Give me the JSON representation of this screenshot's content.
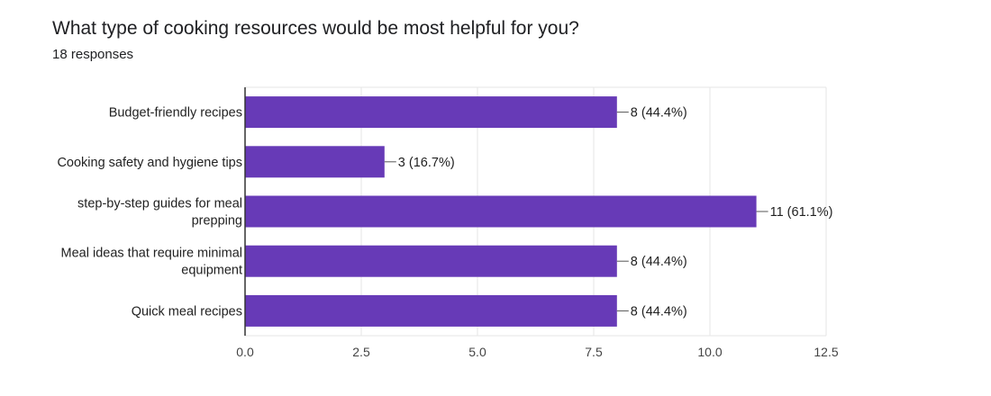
{
  "question": {
    "title": "What type of cooking resources would be most helpful for you?",
    "responses": "18 responses"
  },
  "chart_data": {
    "type": "bar",
    "orientation": "horizontal",
    "categories": [
      [
        "Budget-friendly recipes"
      ],
      [
        "Cooking safety and hygiene tips"
      ],
      [
        "step-by-step guides for meal",
        "prepping"
      ],
      [
        "Meal ideas that require minimal",
        "equipment"
      ],
      [
        "Quick meal recipes"
      ]
    ],
    "values": [
      8,
      3,
      11,
      8,
      8
    ],
    "data_labels": [
      "8 (44.4%)",
      "3 (16.7%)",
      "11 (61.1%)",
      "8 (44.4%)",
      "8 (44.4%)"
    ],
    "xlim": [
      0,
      12.5
    ],
    "x_ticks": [
      0,
      2.5,
      5,
      7.5,
      10,
      12.5
    ],
    "x_tick_labels": [
      "0.0",
      "2.5",
      "5.0",
      "7.5",
      "10.0",
      "12.5"
    ],
    "grid": true,
    "bar_color": "#673ab7",
    "grid_color": "#e6e6e6",
    "axis_color": "#333333"
  }
}
